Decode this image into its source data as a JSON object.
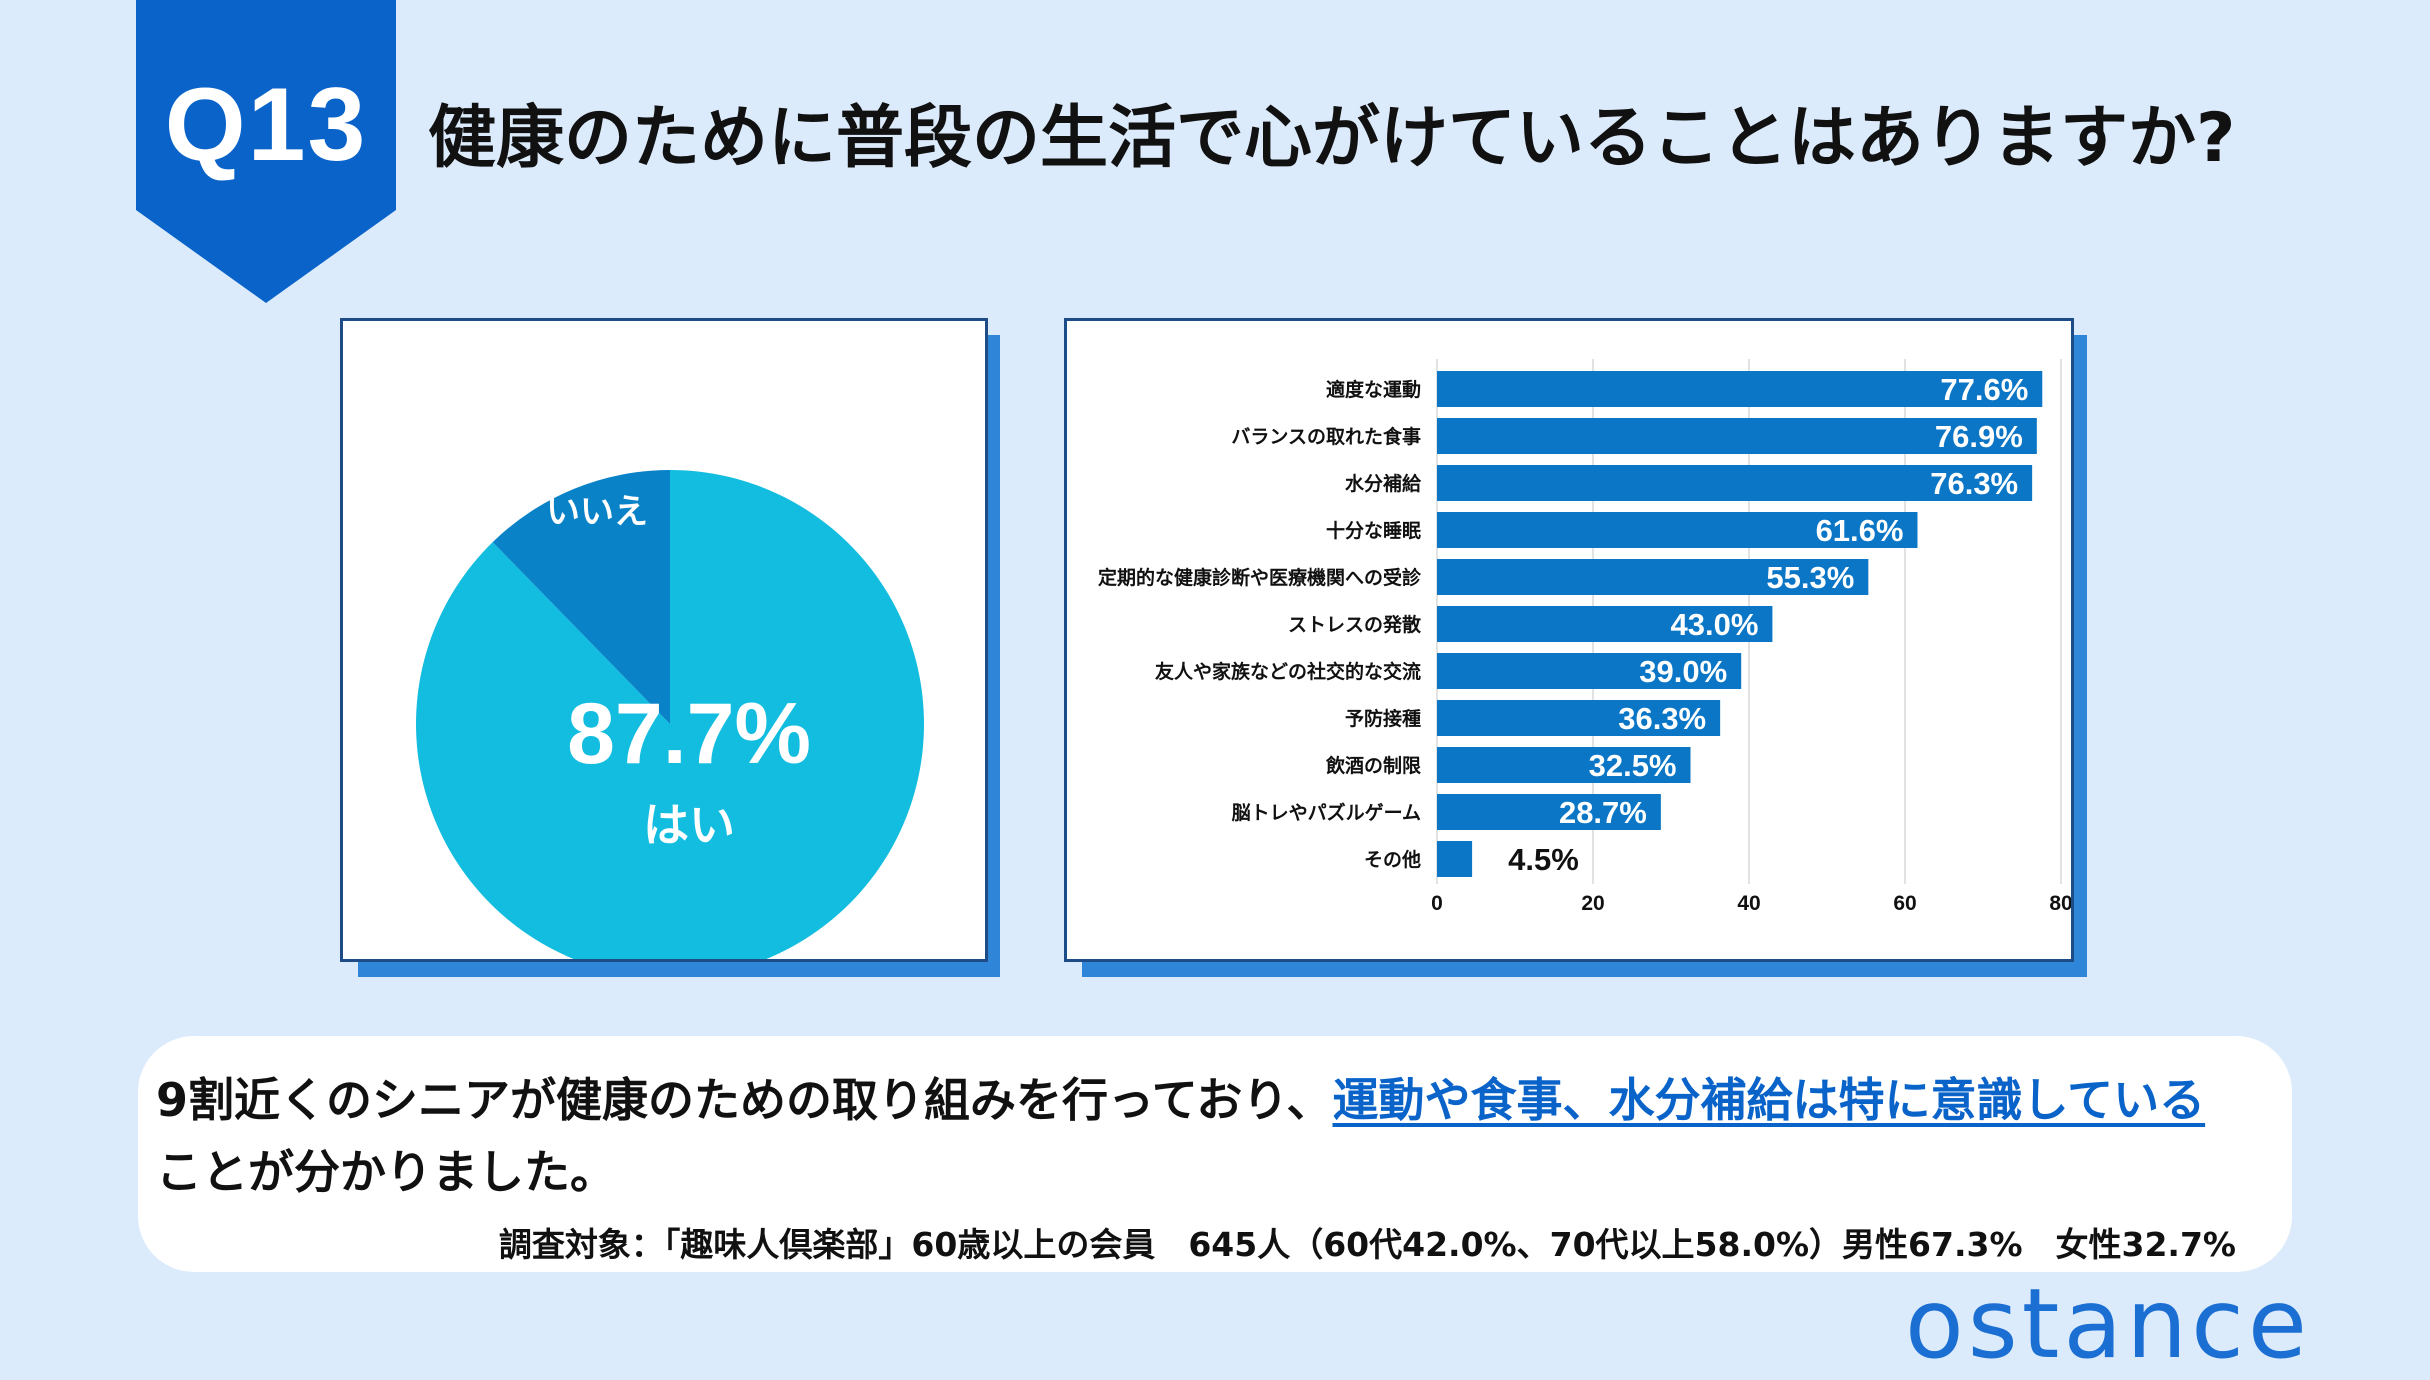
{
  "header": {
    "q_number": "Q13",
    "question": "健康のために普段の生活で心がけていることはありますか?"
  },
  "colors": {
    "background": "#dcebfc",
    "accent": "#0a63c9",
    "pie_yes": "#12bde0",
    "pie_no": "#0a82c8",
    "bar": "#0b76c6"
  },
  "chart_data": [
    {
      "type": "pie",
      "slices": [
        {
          "label": "はい",
          "value": 87.7,
          "value_label": "87.7%"
        },
        {
          "label": "いいえ",
          "value": 12.3,
          "value_label": "12.3%"
        }
      ]
    },
    {
      "type": "bar",
      "orientation": "horizontal",
      "categories": [
        "適度な運動",
        "バランスの取れた食事",
        "水分補給",
        "十分な睡眠",
        "定期的な健康診断や医療機関への受診",
        "ストレスの発散",
        "友人や家族などの社交的な交流",
        "予防接種",
        "飲酒の制限",
        "脳トレやパズルゲーム",
        "その他"
      ],
      "values": [
        77.6,
        76.9,
        76.3,
        61.6,
        55.3,
        43.0,
        39.0,
        36.3,
        32.5,
        28.7,
        4.5
      ],
      "value_labels": [
        "77.6%",
        "76.9%",
        "76.3%",
        "61.6%",
        "55.3%",
        "43.0%",
        "39.0%",
        "36.3%",
        "32.5%",
        "28.7%",
        "4.5%"
      ],
      "xlim": [
        0,
        80
      ],
      "xticks": [
        "0",
        "20",
        "40",
        "60",
        "80"
      ],
      "grid": true
    }
  ],
  "summary": {
    "text_before": "9割近くのシニアが健康のための取り組みを行っており、",
    "highlight": "運動や食事、水分補給は特に意識している",
    "text_after": "ことが分かりました。",
    "survey": "調査対象：「趣味人倶楽部」60歳以上の会員　645人（60代42.0%、70代以上58.0%）男性67.3%　女性32.7%"
  },
  "logo": "ostance"
}
